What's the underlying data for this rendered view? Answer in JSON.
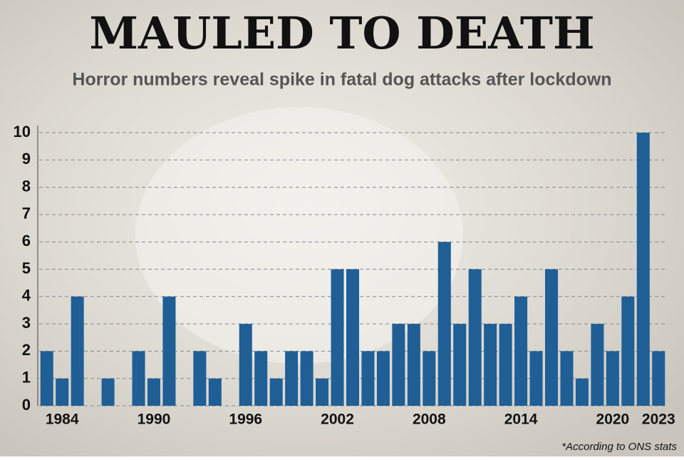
{
  "chart_data": {
    "type": "bar",
    "title": "MAULED TO DEATH",
    "subtitle": "Horror numbers reveal spike in fatal dog attacks after lockdown",
    "note": "*According to ONS stats",
    "categories": [
      null,
      "1984",
      null,
      null,
      null,
      null,
      null,
      "1990",
      null,
      null,
      null,
      null,
      null,
      "1996",
      null,
      null,
      null,
      null,
      null,
      "2002",
      null,
      null,
      null,
      null,
      null,
      "2008",
      null,
      null,
      null,
      null,
      null,
      "2014",
      null,
      null,
      null,
      null,
      null,
      "2020",
      null,
      null,
      "2023"
    ],
    "values": [
      2,
      1,
      4,
      0,
      1,
      0,
      2,
      1,
      4,
      0,
      2,
      1,
      0,
      3,
      2,
      1,
      2,
      2,
      1,
      5,
      5,
      2,
      2,
      3,
      3,
      2,
      6,
      3,
      5,
      3,
      3,
      4,
      2,
      5,
      2,
      1,
      3,
      2,
      4,
      10,
      2
    ],
    "color": "#1f5f96",
    "ylim": [
      0,
      10
    ],
    "yticks": [
      0,
      1,
      2,
      3,
      4,
      5,
      6,
      7,
      8,
      9,
      10
    ],
    "grid": true
  }
}
